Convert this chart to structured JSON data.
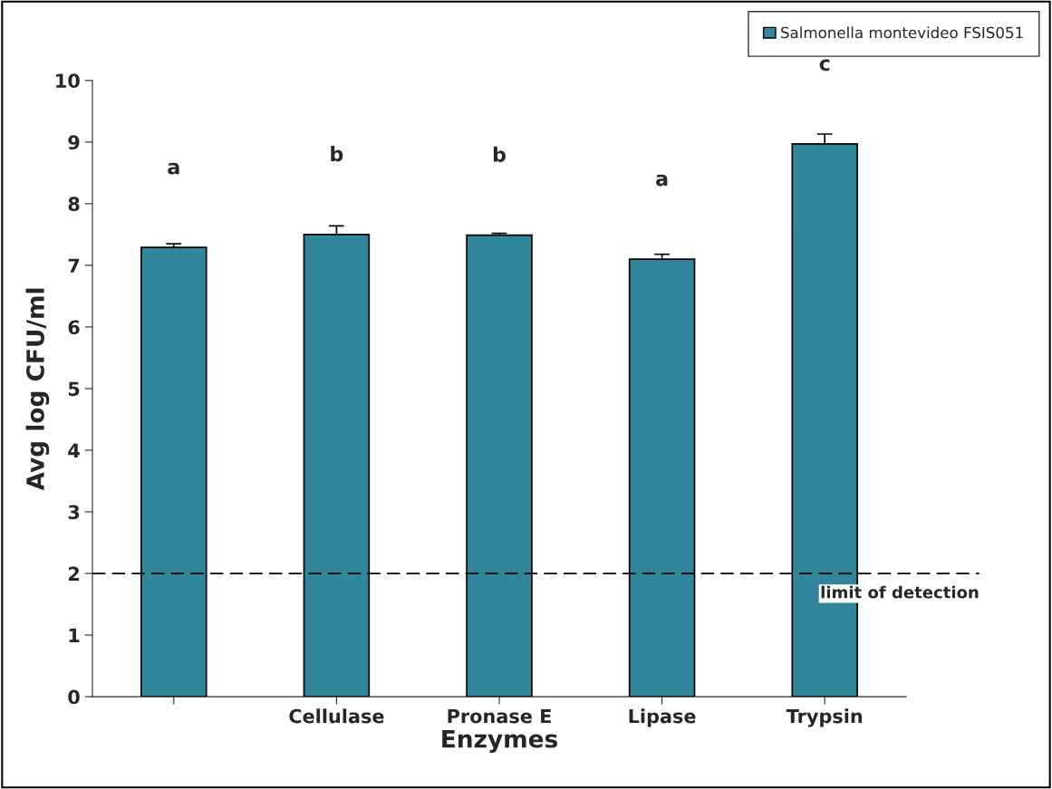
{
  "chart_data": {
    "type": "bar",
    "xlabel": "Enzymes",
    "ylabel": "Avg log CFU/ml",
    "categories": [
      null,
      "Cellulase",
      "Pronase E",
      "Lipase",
      "Trypsin"
    ],
    "series": [
      {
        "name": "Salmonella montevideo FSIS051",
        "color": "#32869c",
        "values": [
          7.29,
          7.5,
          7.49,
          7.1,
          8.97
        ],
        "errors": [
          0.06,
          0.14,
          0.03,
          0.08,
          0.16
        ]
      }
    ],
    "ylim": [
      0,
      10
    ],
    "yticks": [
      0,
      1,
      2,
      3,
      4,
      5,
      6,
      7,
      8,
      9,
      10
    ],
    "ref_lines": [
      {
        "axis": "y",
        "value": 2,
        "label": "limit of detection",
        "line_style": "dashed",
        "color": "#000000"
      }
    ],
    "annotations": [
      "a",
      "b",
      "b",
      "a",
      "c"
    ],
    "legend": "top right",
    "grid": false
  }
}
